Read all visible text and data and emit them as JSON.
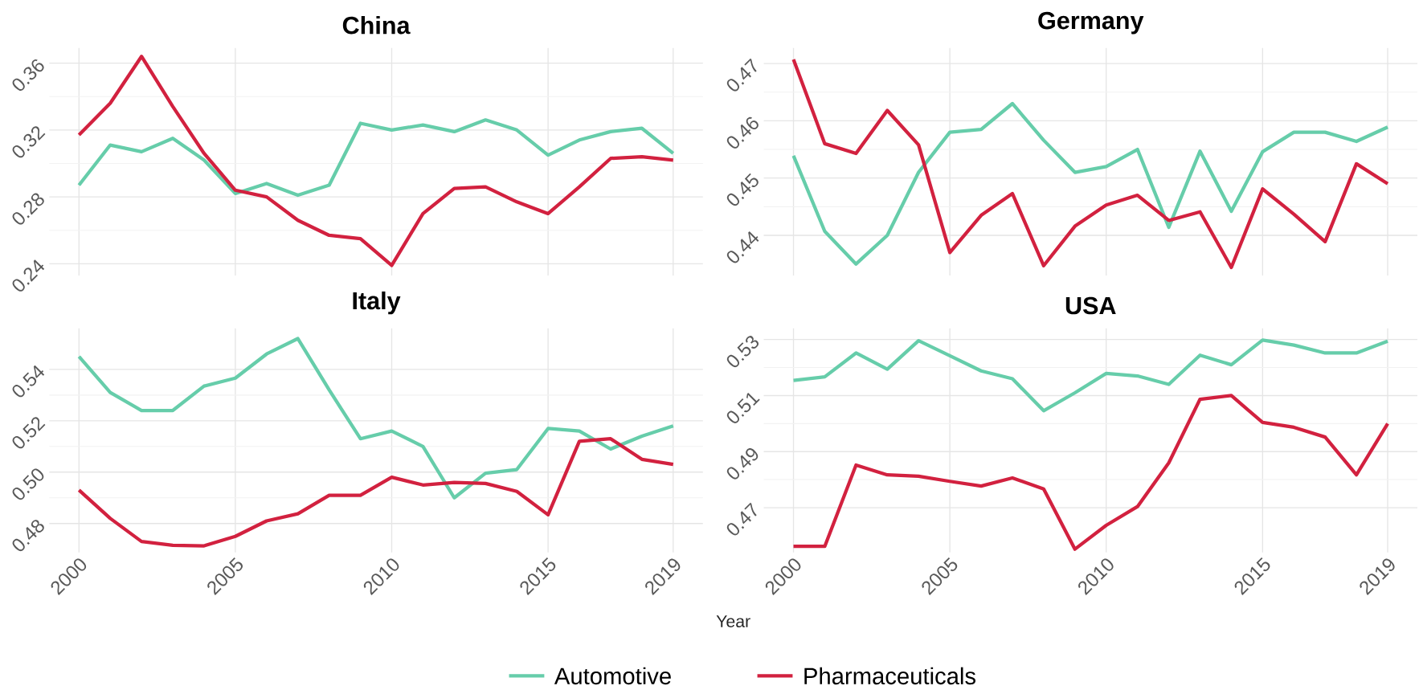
{
  "chart_data": [
    {
      "type": "line",
      "title": "China",
      "x": [
        2000,
        2001,
        2002,
        2003,
        2004,
        2005,
        2006,
        2007,
        2008,
        2009,
        2010,
        2011,
        2012,
        2013,
        2014,
        2015,
        2016,
        2017,
        2018,
        2019
      ],
      "xlim": [
        1999.05,
        2019.95
      ],
      "xticks": [
        2000,
        2005,
        2010,
        2015,
        2019
      ],
      "ylim": [
        0.233,
        0.369
      ],
      "yticks": [
        0.24,
        0.28,
        0.32,
        0.36
      ],
      "grid": true,
      "tick_labels": "y",
      "line_style": "solid",
      "legend": "bottom",
      "series": [
        {
          "name": "Automotive",
          "color": "#66cdaa",
          "values": [
            0.287,
            0.311,
            0.307,
            0.315,
            0.302,
            0.282,
            0.288,
            0.281,
            0.287,
            0.324,
            0.32,
            0.323,
            0.319,
            0.326,
            0.32,
            0.305,
            0.314,
            0.319,
            0.321,
            0.306
          ]
        },
        {
          "name": "Pharmaceuticals",
          "color": "#d2213f",
          "values": [
            0.317,
            0.336,
            0.364,
            0.334,
            0.306,
            0.284,
            0.28,
            0.266,
            0.257,
            0.255,
            0.239,
            0.27,
            0.285,
            0.286,
            0.277,
            0.27,
            0.286,
            0.303,
            0.304,
            0.302
          ]
        }
      ]
    },
    {
      "type": "line",
      "title": "Germany",
      "x": [
        2000,
        2001,
        2002,
        2003,
        2004,
        2005,
        2006,
        2007,
        2008,
        2009,
        2010,
        2011,
        2012,
        2013,
        2014,
        2015,
        2016,
        2017,
        2018,
        2019
      ],
      "xlim": [
        1999.05,
        2019.95
      ],
      "xticks": [
        2000,
        2005,
        2010,
        2015,
        2019
      ],
      "ylim": [
        0.433,
        0.4727
      ],
      "yticks": [
        0.44,
        0.45,
        0.46,
        0.47
      ],
      "grid": true,
      "tick_labels": "y",
      "line_style": "solid",
      "series": [
        {
          "color": "#66cdaa",
          "values": [
            0.4539,
            0.4407,
            0.435,
            0.44,
            0.451,
            0.458,
            0.4585,
            0.463,
            0.4566,
            0.451,
            0.452,
            0.455,
            0.4414,
            0.4547,
            0.4442,
            0.4546,
            0.458,
            0.458,
            0.4564,
            0.4589
          ]
        },
        {
          "color": "#d2213f",
          "values": [
            0.4707,
            0.456,
            0.4543,
            0.4618,
            0.4558,
            0.437,
            0.4435,
            0.4473,
            0.4347,
            0.4416,
            0.4453,
            0.447,
            0.4426,
            0.4441,
            0.4344,
            0.4481,
            0.4437,
            0.4389,
            0.4525,
            0.449
          ]
        }
      ]
    },
    {
      "type": "line",
      "title": "Italy",
      "x": [
        2000,
        2001,
        2002,
        2003,
        2004,
        2005,
        2006,
        2007,
        2008,
        2009,
        2010,
        2011,
        2012,
        2013,
        2014,
        2015,
        2016,
        2017,
        2018,
        2019
      ],
      "xlim": [
        1999.05,
        2019.95
      ],
      "xticks": [
        2000,
        2005,
        2010,
        2015,
        2019
      ],
      "ylim": [
        0.4687,
        0.556
      ],
      "yticks": [
        0.48,
        {
          "value": 0.5,
          "label": "0.50"
        },
        0.52,
        0.54
      ],
      "grid": true,
      "line_style": "solid",
      "series": [
        {
          "color": "#66cdaa",
          "values": [
            0.545,
            0.531,
            0.524,
            0.524,
            0.5335,
            0.5366,
            0.546,
            0.552,
            0.532,
            0.513,
            0.516,
            0.51,
            0.49,
            0.4996,
            0.501,
            0.517,
            0.516,
            0.509,
            0.514,
            0.518
          ]
        },
        {
          "color": "#d2213f",
          "values": [
            0.493,
            0.482,
            0.473,
            0.4715,
            0.4713,
            0.475,
            0.481,
            0.4838,
            0.491,
            0.491,
            0.498,
            0.495,
            0.496,
            0.4956,
            0.4925,
            0.4834,
            0.512,
            0.513,
            0.505,
            0.503
          ]
        }
      ]
    },
    {
      "type": "line",
      "title": "USA",
      "xlabel": "Year",
      "x": [
        2000,
        2001,
        2002,
        2003,
        2004,
        2005,
        2006,
        2007,
        2008,
        2009,
        2010,
        2011,
        2012,
        2013,
        2014,
        2015,
        2016,
        2017,
        2018,
        2019
      ],
      "xlim": [
        1999.05,
        2019.95
      ],
      "xticks": [
        2000,
        2005,
        2010,
        2015,
        2019
      ],
      "ylim": [
        0.454,
        0.534
      ],
      "yticks": [
        0.47,
        0.49,
        0.51,
        0.53
      ],
      "grid": true,
      "line_style": "solid",
      "series": [
        {
          "color": "#66cdaa",
          "values": [
            0.5154,
            0.5167,
            0.5252,
            0.5194,
            0.5296,
            0.5242,
            0.5188,
            0.516,
            0.5046,
            0.511,
            0.5179,
            0.517,
            0.514,
            0.5244,
            0.521,
            0.5298,
            0.528,
            0.5252,
            0.5252,
            0.5294
          ]
        },
        {
          "color": "#d2213f",
          "values": [
            0.4562,
            0.4562,
            0.4852,
            0.4817,
            0.4812,
            0.4794,
            0.4777,
            0.4806,
            0.4767,
            0.4552,
            0.4637,
            0.4704,
            0.486,
            0.5087,
            0.51,
            0.5004,
            0.4987,
            0.4952,
            0.4817,
            0.5
          ]
        }
      ]
    }
  ]
}
